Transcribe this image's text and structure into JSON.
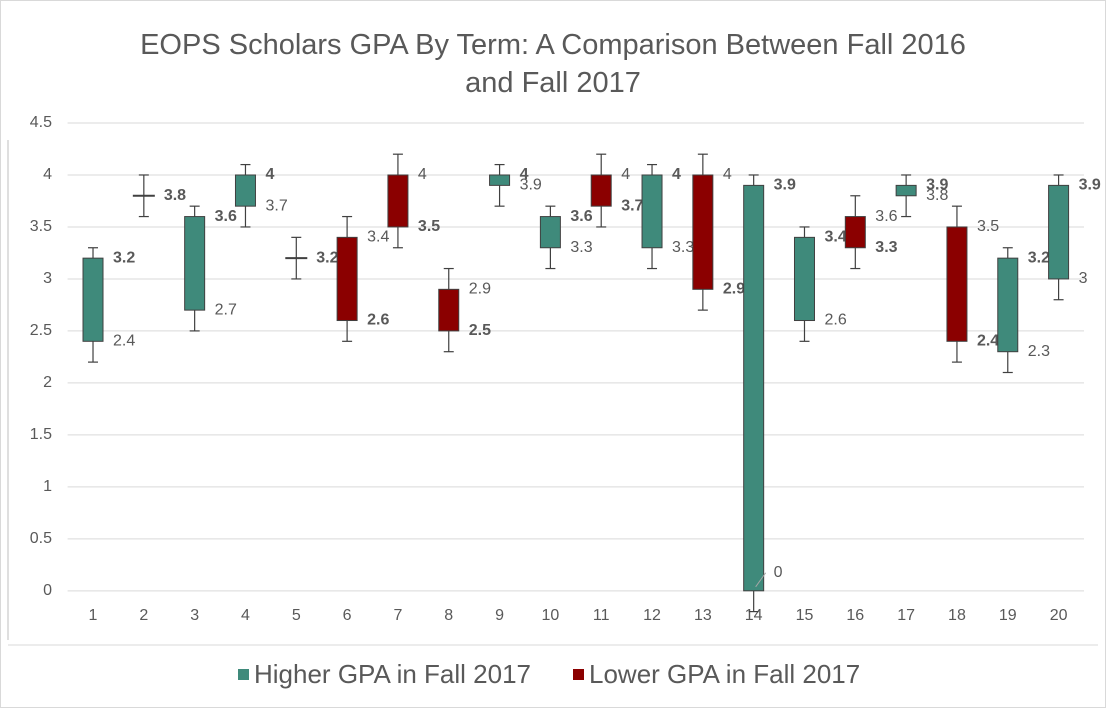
{
  "chart_data": {
    "type": "stock",
    "title": "EOPS Scholars GPA By Term: A Comparison Between Fall 2016 and Fall 2017",
    "categories": [
      "1",
      "2",
      "3",
      "4",
      "5",
      "6",
      "7",
      "8",
      "9",
      "10",
      "11",
      "12",
      "13",
      "14",
      "15",
      "16",
      "17",
      "18",
      "19",
      "20"
    ],
    "fall_2016": [
      2.4,
      3.8,
      2.7,
      3.7,
      3.2,
      3.4,
      4,
      2.9,
      3.9,
      3.3,
      4,
      3.3,
      4,
      0,
      2.6,
      3.6,
      3.8,
      3.5,
      2.3,
      3
    ],
    "fall_2017": [
      3.2,
      3.8,
      3.6,
      4,
      3.2,
      2.6,
      3.5,
      2.5,
      4,
      3.6,
      3.7,
      4,
      2.9,
      3.9,
      3.4,
      3.3,
      3.9,
      2.4,
      3.2,
      3.9
    ],
    "high": [
      3.3,
      4.0,
      3.7,
      4.1,
      3.4,
      3.6,
      4.2,
      3.1,
      4.1,
      3.7,
      4.2,
      4.1,
      4.2,
      4.0,
      3.5,
      3.8,
      4.0,
      3.7,
      3.3,
      4.0
    ],
    "low": [
      2.2,
      3.6,
      2.5,
      3.5,
      3.0,
      2.4,
      3.3,
      2.3,
      3.7,
      3.1,
      3.5,
      3.1,
      2.7,
      -0.2,
      2.4,
      3.1,
      3.6,
      2.2,
      2.1,
      2.8
    ],
    "series": [
      {
        "name": "Higher GPA in Fall 2017",
        "color": "#3f8a7b"
      },
      {
        "name": "Lower GPA in Fall 2017",
        "color": "#8b0000"
      }
    ],
    "ylim": [
      -0.3,
      4.5
    ],
    "yticks": [
      0,
      0.5,
      1,
      1.5,
      2,
      2.5,
      3,
      3.5,
      4,
      4.5
    ],
    "grid": true
  }
}
